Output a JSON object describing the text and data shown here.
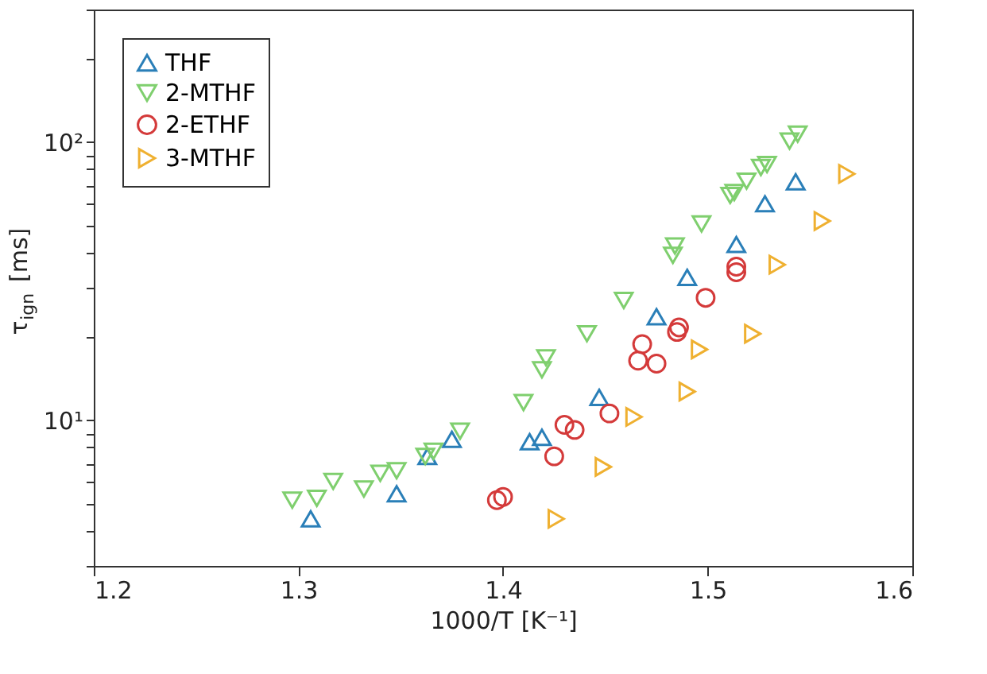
{
  "chart_data": {
    "type": "scatter",
    "xlabel": "1000/T [K⁻¹]",
    "ylabel": "τ$_{ign}$ [ms]",
    "log": "y",
    "grid": false,
    "legend": "top left",
    "xlim": [
      1.2,
      1.6
    ],
    "xticks": [
      1.2,
      1.3,
      1.4,
      1.5,
      1.6
    ],
    "ylim": [
      3,
      300
    ],
    "yticks": [
      {
        "value": 3,
        "label": null
      },
      {
        "value": 4,
        "label": null
      },
      {
        "value": 5,
        "label": null
      },
      {
        "value": 6,
        "label": null
      },
      {
        "value": 7,
        "label": null
      },
      {
        "value": 8,
        "label": null
      },
      {
        "value": 9,
        "label": null
      },
      {
        "value": 10,
        "label": "10¹"
      },
      {
        "value": 20,
        "label": null
      },
      {
        "value": 30,
        "label": null
      },
      {
        "value": 40,
        "label": null
      },
      {
        "value": 50,
        "label": null
      },
      {
        "value": 60,
        "label": null
      },
      {
        "value": 70,
        "label": null
      },
      {
        "value": 80,
        "label": null
      },
      {
        "value": 90,
        "label": null
      },
      {
        "value": 100,
        "label": "10²"
      },
      {
        "value": 200,
        "label": null
      },
      {
        "value": 300,
        "label": null
      }
    ],
    "series": [
      {
        "name": "THF",
        "color": "#2a7fb8",
        "marker": "triangle-up",
        "x": [
          1.306,
          1.348,
          1.363,
          1.375,
          1.413,
          1.419,
          1.447,
          1.475,
          1.49,
          1.514,
          1.528,
          1.543
        ],
        "values": [
          4.43,
          5.45,
          7.43,
          8.55,
          8.38,
          8.69,
          12.1,
          23.6,
          32.7,
          42.9,
          60.1,
          72.1
        ]
      },
      {
        "name": "2-MTHF",
        "color": "#7fcf6e",
        "marker": "triangle-down",
        "x": [
          1.297,
          1.309,
          1.317,
          1.332,
          1.34,
          1.348,
          1.362,
          1.366,
          1.379,
          1.41,
          1.419,
          1.421,
          1.441,
          1.459,
          1.483,
          1.484,
          1.497,
          1.511,
          1.513,
          1.519,
          1.526,
          1.529,
          1.54,
          1.544
        ],
        "values": [
          5.17,
          5.25,
          6.04,
          5.67,
          6.46,
          6.6,
          7.43,
          7.75,
          9.15,
          11.6,
          15.2,
          16.8,
          20.5,
          27.0,
          39.2,
          42.4,
          50.9,
          64.4,
          66.0,
          72.5,
          81.1,
          83.2,
          101,
          107
        ]
      },
      {
        "name": "2-ETHF",
        "color": "#d43a3a",
        "marker": "circle",
        "x": [
          1.397,
          1.4,
          1.425,
          1.43,
          1.435,
          1.452,
          1.466,
          1.468,
          1.475,
          1.485,
          1.486,
          1.499,
          1.514,
          1.514
        ],
        "values": [
          5.17,
          5.31,
          7.43,
          9.64,
          9.25,
          10.6,
          16.4,
          18.8,
          16.0,
          20.8,
          21.6,
          27.6,
          34.1,
          35.7
        ]
      },
      {
        "name": "3-MTHF",
        "color": "#efb030",
        "marker": "triangle-right",
        "x": [
          1.426,
          1.449,
          1.464,
          1.49,
          1.496,
          1.522,
          1.534,
          1.556,
          1.568
        ],
        "values": [
          4.43,
          6.81,
          10.3,
          12.7,
          18.0,
          20.5,
          36.3,
          52.1,
          77.0
        ]
      }
    ]
  }
}
